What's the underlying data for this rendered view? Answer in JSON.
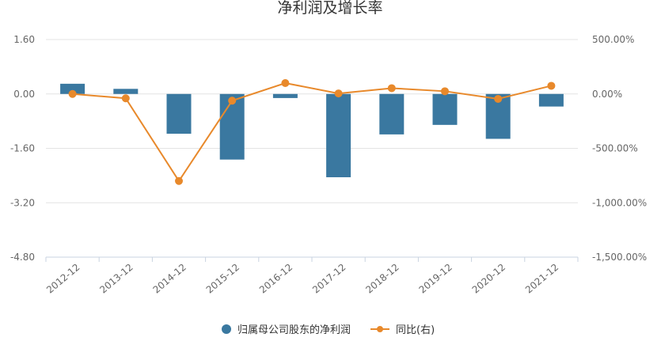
{
  "chart_data": {
    "type": "bar-line-combo",
    "title": "净利润及增长率",
    "categories": [
      "2012-12",
      "2013-12",
      "2014-12",
      "2015-12",
      "2016-12",
      "2017-12",
      "2018-12",
      "2019-12",
      "2020-12",
      "2021-12"
    ],
    "series": [
      {
        "name": "归属母公司股东的净利润",
        "type": "bar",
        "axis": "left",
        "color": "#3a78a0",
        "values": [
          0.3,
          0.15,
          -1.17,
          -1.93,
          -0.12,
          -2.45,
          -1.19,
          -0.91,
          -1.32,
          -0.37
        ]
      },
      {
        "name": "同比(右)",
        "type": "line",
        "axis": "right",
        "color": "#e8892b",
        "values": [
          0.0,
          -40.0,
          -800.0,
          -62.0,
          100.0,
          5.0,
          53.0,
          25.0,
          -45.0,
          75.0
        ]
      }
    ],
    "left_axis": {
      "ylim": [
        -4.8,
        1.6
      ],
      "ticks": [
        1.6,
        0.0,
        -1.6,
        -3.2,
        -4.8
      ],
      "tick_labels": [
        "1.60",
        "0.00",
        "-1.60",
        "-3.20",
        "-4.80"
      ]
    },
    "right_axis": {
      "ylim": [
        -1500,
        500
      ],
      "ticks": [
        500,
        0,
        -500,
        -1000,
        -1500
      ],
      "tick_labels": [
        "500.00%",
        "0.00%",
        "-500.00%",
        "-1,000.00%",
        "-1,500.00%"
      ]
    },
    "grid": true,
    "legend": "bottom-center"
  }
}
